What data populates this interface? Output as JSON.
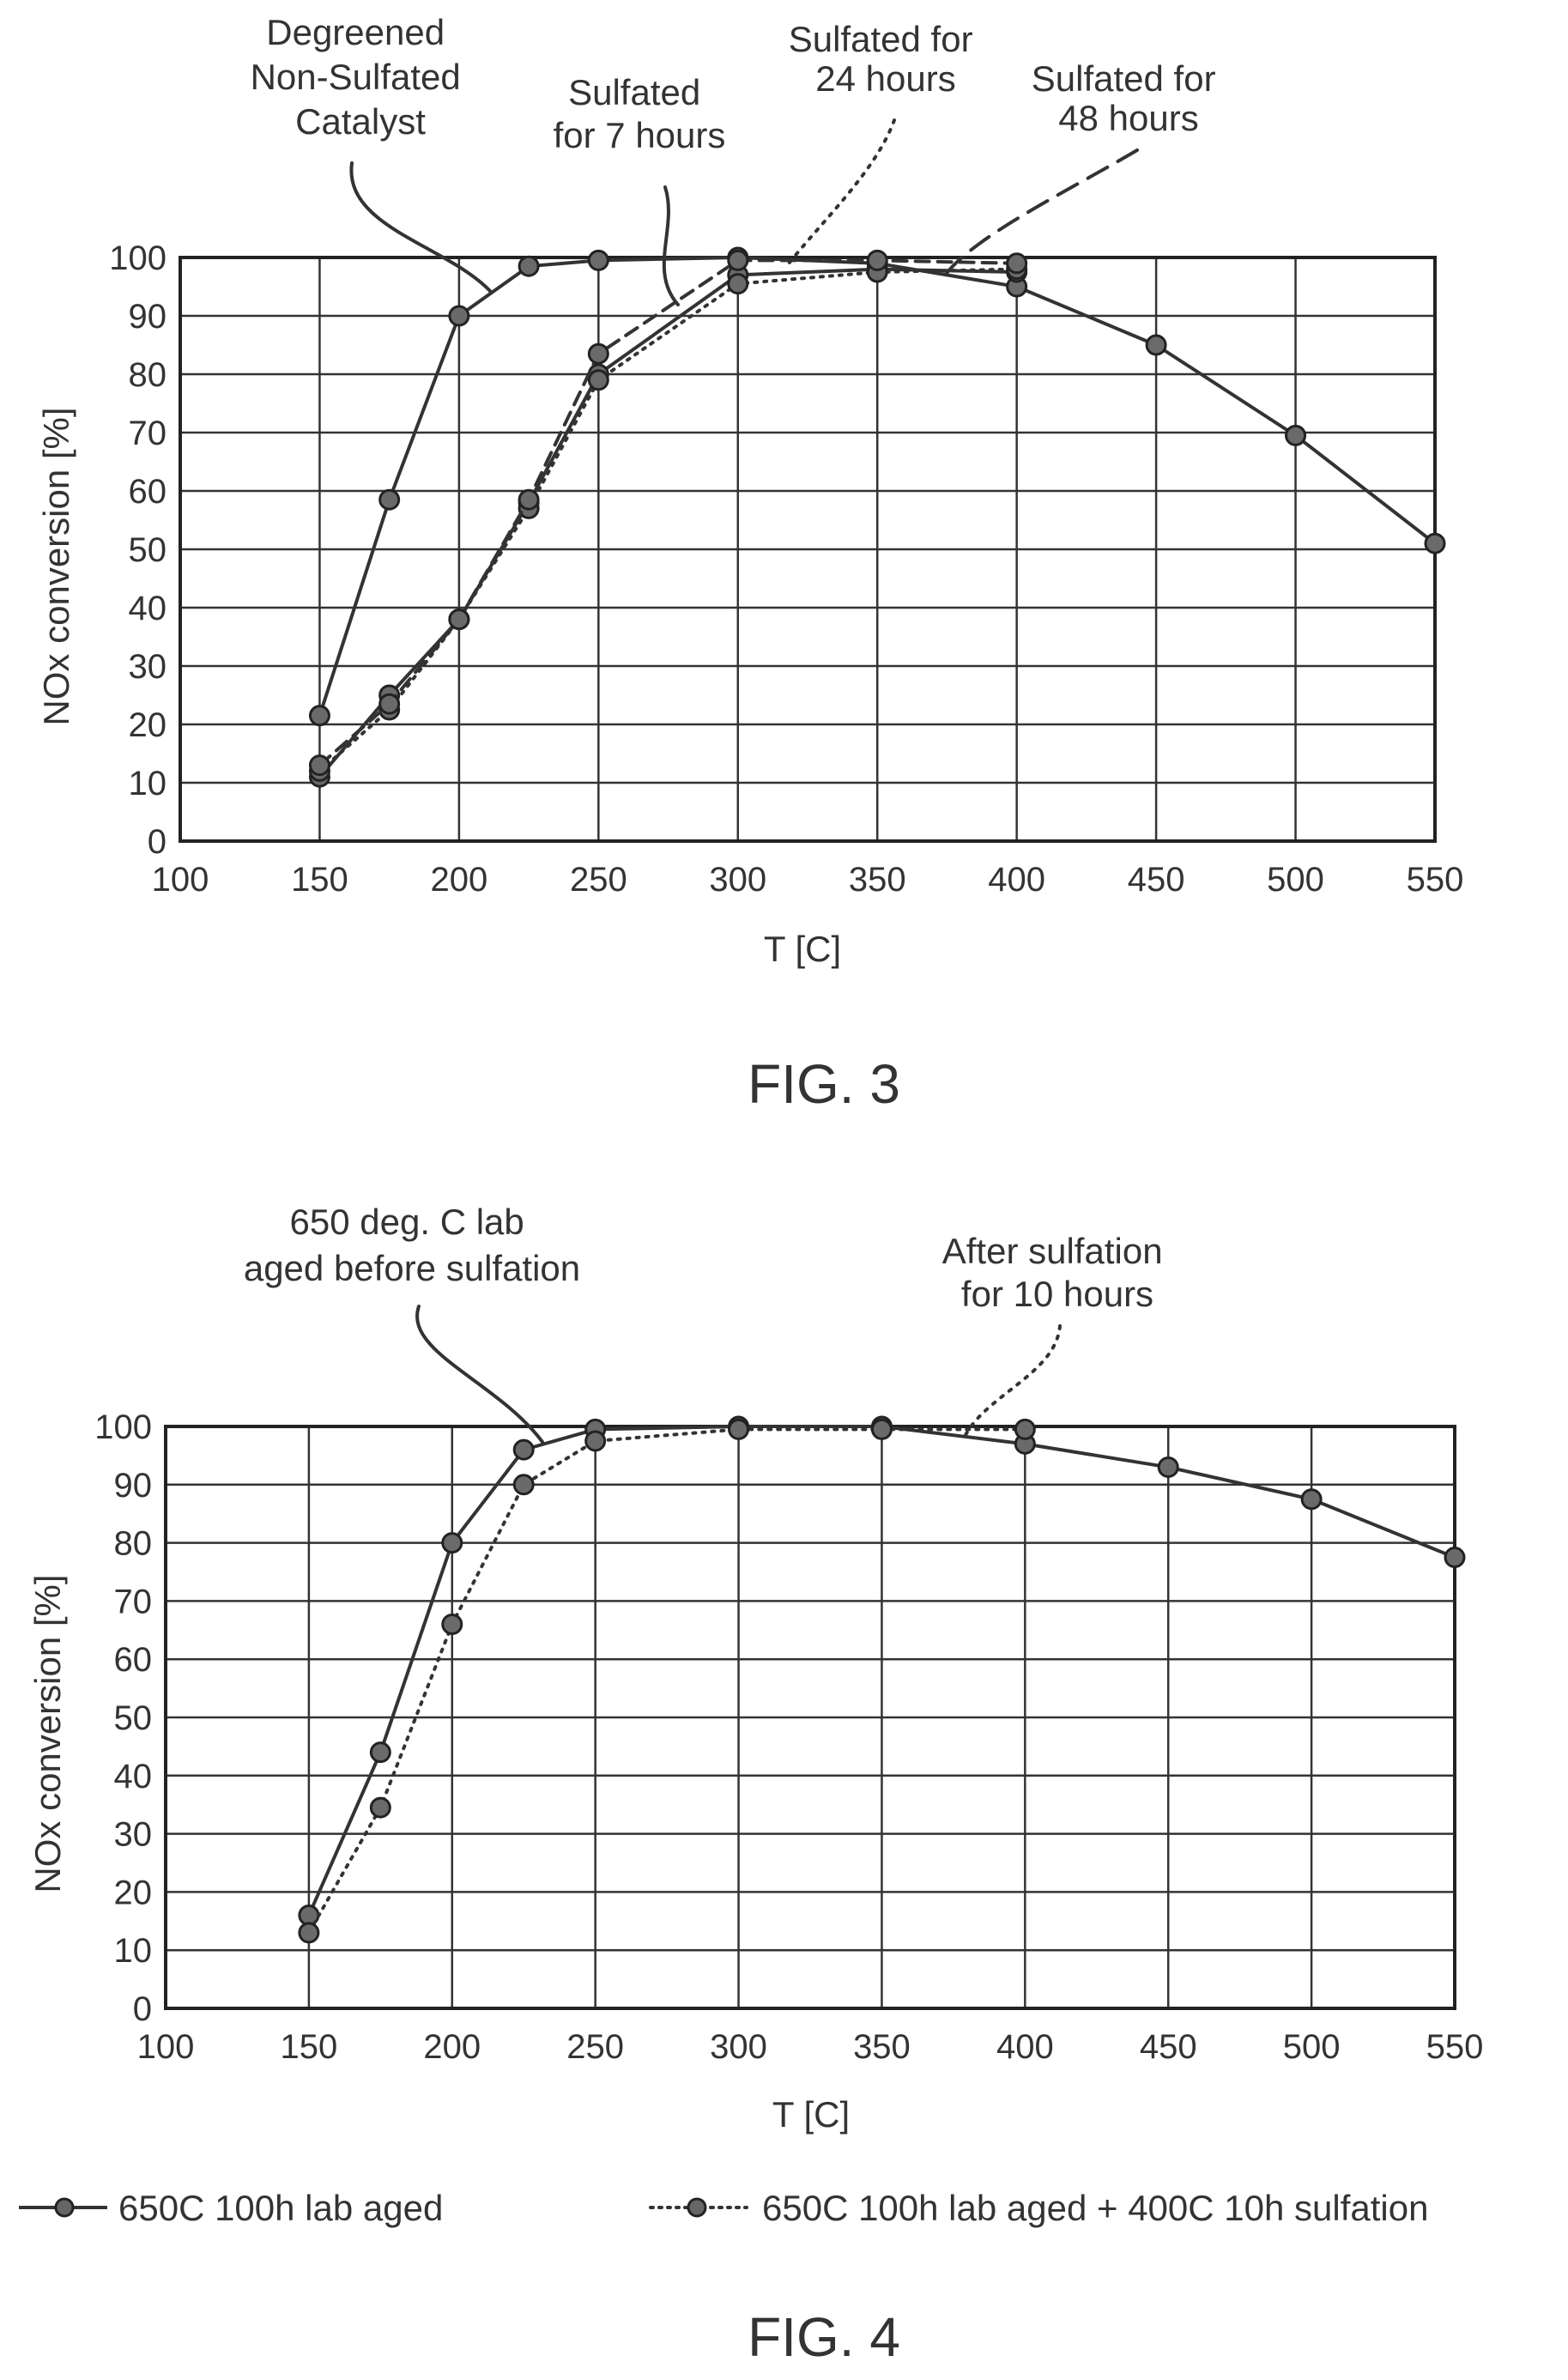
{
  "figures": [
    {
      "caption": "FIG. 3",
      "chart_data": {
        "type": "line",
        "title": "",
        "xlabel": "T [C]",
        "ylabel": "NOx conversion [%]",
        "xlim": [
          100,
          550
        ],
        "ylim": [
          0,
          100
        ],
        "xticks": [
          100,
          150,
          200,
          250,
          300,
          350,
          400,
          450,
          500,
          550
        ],
        "yticks": [
          0,
          10,
          20,
          30,
          40,
          50,
          60,
          70,
          80,
          90,
          100
        ],
        "grid": true,
        "series": [
          {
            "name": "Degreened Non-Sulfated Catalyst",
            "style": "solid",
            "x": [
              150,
              175,
              200,
              225,
              250,
              300,
              350,
              400,
              450,
              500,
              550
            ],
            "y": [
              21.5,
              58.5,
              90,
              98.5,
              99.5,
              100,
              99,
              95,
              85,
              69.5,
              51
            ]
          },
          {
            "name": "Sulfated for 7 hours",
            "style": "solid",
            "x": [
              150,
              175,
              200,
              225,
              250,
              300,
              350,
              400
            ],
            "y": [
              11,
              25,
              38,
              58,
              80,
              97,
              98,
              97.5
            ]
          },
          {
            "name": "Sulfated for 24 hours",
            "style": "dotted",
            "x": [
              150,
              175,
              200,
              225,
              250,
              300,
              350,
              400
            ],
            "y": [
              12,
              22.5,
              38,
              57,
              79,
              95.5,
              97.5,
              98
            ]
          },
          {
            "name": "Sulfated for 48 hours",
            "style": "dashed",
            "x": [
              150,
              175,
              200,
              225,
              250,
              300,
              350,
              400
            ],
            "y": [
              13,
              23.5,
              38,
              58.5,
              83.5,
              99.5,
              99.5,
              99
            ]
          }
        ],
        "annotations": [
          {
            "lines": [
              "Degreened",
              "Non-Sulfated",
              "Catalyst"
            ],
            "target": "Degreened Non-Sulfated Catalyst"
          },
          {
            "lines": [
              "Sulfated",
              "for 7 hours"
            ],
            "target": "Sulfated for 7 hours"
          },
          {
            "lines": [
              "Sulfated for",
              "24 hours"
            ],
            "target": "Sulfated for 24 hours"
          },
          {
            "lines": [
              "Sulfated for",
              "48 hours"
            ],
            "target": "Sulfated for 48 hours"
          }
        ]
      }
    },
    {
      "caption": "FIG. 4",
      "chart_data": {
        "type": "line",
        "title": "",
        "xlabel": "T [C]",
        "ylabel": "NOx conversion [%]",
        "xlim": [
          100,
          550
        ],
        "ylim": [
          0,
          100
        ],
        "xticks": [
          100,
          150,
          200,
          250,
          300,
          350,
          400,
          450,
          500,
          550
        ],
        "yticks": [
          0,
          10,
          20,
          30,
          40,
          50,
          60,
          70,
          80,
          90,
          100
        ],
        "grid": true,
        "legend": "bottom",
        "series": [
          {
            "name": "650C 100h lab aged",
            "style": "solid",
            "x": [
              150,
              175,
              200,
              225,
              250,
              300,
              350,
              400,
              450,
              500,
              550
            ],
            "y": [
              16,
              44,
              80,
              96,
              99.5,
              100,
              100,
              97,
              93,
              87.5,
              77.5
            ]
          },
          {
            "name": "650C 100h lab aged + 400C 10h sulfation",
            "style": "dotted",
            "x": [
              150,
              175,
              200,
              225,
              250,
              300,
              350,
              400
            ],
            "y": [
              13,
              34.5,
              66,
              90,
              97.5,
              99.5,
              99.5,
              99.5
            ]
          }
        ],
        "annotations": [
          {
            "lines": [
              "650 deg. C lab",
              "aged before sulfation"
            ],
            "target": "650C 100h lab aged"
          },
          {
            "lines": [
              "After sulfation",
              "for 10 hours"
            ],
            "target": "650C 100h lab aged + 400C 10h sulfation"
          }
        ]
      }
    }
  ]
}
